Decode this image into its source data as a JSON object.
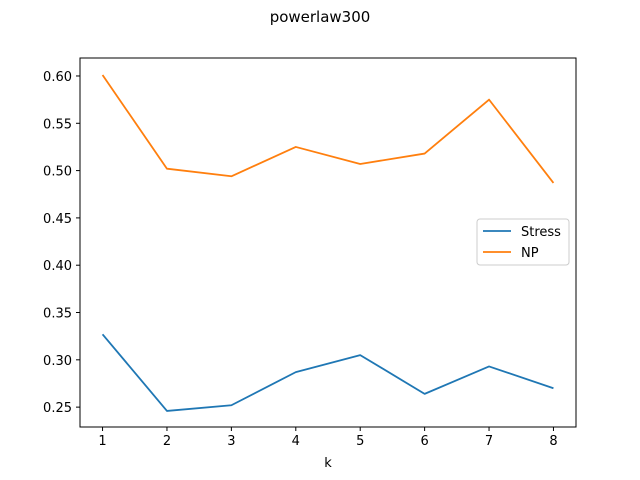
{
  "chart_data": {
    "type": "line",
    "title": "powerlaw300",
    "xlabel": "k",
    "ylabel": "",
    "x": [
      1,
      2,
      3,
      4,
      5,
      6,
      7,
      8
    ],
    "xlim": [
      0.65,
      8.35
    ],
    "ylim": [
      0.229,
      0.619
    ],
    "yticks": [
      "0.25",
      "0.30",
      "0.35",
      "0.40",
      "0.45",
      "0.50",
      "0.55",
      "0.60"
    ],
    "xticks": [
      "1",
      "2",
      "3",
      "4",
      "5",
      "6",
      "7",
      "8"
    ],
    "grid": false,
    "legend_position": "center-right",
    "series": [
      {
        "name": "Stress",
        "color": "#1f77b4",
        "values": [
          0.327,
          0.246,
          0.252,
          0.287,
          0.305,
          0.264,
          0.293,
          0.27
        ]
      },
      {
        "name": "NP",
        "color": "#ff7f0e",
        "values": [
          0.601,
          0.502,
          0.494,
          0.525,
          0.507,
          0.518,
          0.575,
          0.487
        ]
      }
    ]
  }
}
